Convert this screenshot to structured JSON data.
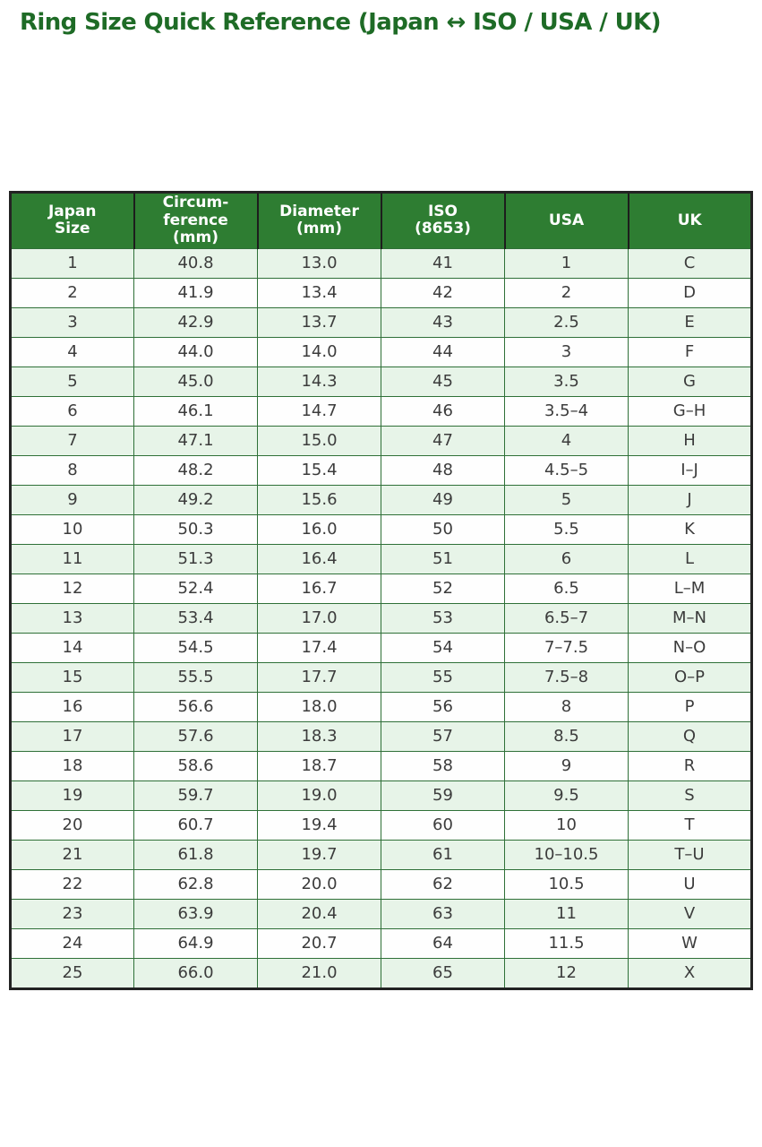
{
  "chart_data": {
    "type": "table",
    "title": "Ring Size Quick Reference (Japan ↔ ISO / USA / UK)",
    "column_keys": [
      "japan-size",
      "circumference-mm",
      "diameter-mm",
      "iso-8653",
      "usa",
      "uk"
    ],
    "columns": [
      {
        "label": "Japan Size",
        "lines": [
          "Japan",
          "Size"
        ]
      },
      {
        "label": "Circum-ference (mm)",
        "lines": [
          "Circum-",
          "ference",
          "(mm)"
        ]
      },
      {
        "label": "Diameter (mm)",
        "lines": [
          "Diameter",
          "(mm)"
        ]
      },
      {
        "label": "ISO (8653)",
        "lines": [
          "ISO",
          "(8653)"
        ]
      },
      {
        "label": "USA",
        "lines": [
          "USA"
        ]
      },
      {
        "label": "UK",
        "lines": [
          "UK"
        ]
      }
    ],
    "rows": [
      [
        "1",
        "40.8",
        "13.0",
        "41",
        "1",
        "C"
      ],
      [
        "2",
        "41.9",
        "13.4",
        "42",
        "2",
        "D"
      ],
      [
        "3",
        "42.9",
        "13.7",
        "43",
        "2.5",
        "E"
      ],
      [
        "4",
        "44.0",
        "14.0",
        "44",
        "3",
        "F"
      ],
      [
        "5",
        "45.0",
        "14.3",
        "45",
        "3.5",
        "G"
      ],
      [
        "6",
        "46.1",
        "14.7",
        "46",
        "3.5–4",
        "G–H"
      ],
      [
        "7",
        "47.1",
        "15.0",
        "47",
        "4",
        "H"
      ],
      [
        "8",
        "48.2",
        "15.4",
        "48",
        "4.5–5",
        "I–J"
      ],
      [
        "9",
        "49.2",
        "15.6",
        "49",
        "5",
        "J"
      ],
      [
        "10",
        "50.3",
        "16.0",
        "50",
        "5.5",
        "K"
      ],
      [
        "11",
        "51.3",
        "16.4",
        "51",
        "6",
        "L"
      ],
      [
        "12",
        "52.4",
        "16.7",
        "52",
        "6.5",
        "L–M"
      ],
      [
        "13",
        "53.4",
        "17.0",
        "53",
        "6.5–7",
        "M–N"
      ],
      [
        "14",
        "54.5",
        "17.4",
        "54",
        "7–7.5",
        "N–O"
      ],
      [
        "15",
        "55.5",
        "17.7",
        "55",
        "7.5–8",
        "O–P"
      ],
      [
        "16",
        "56.6",
        "18.0",
        "56",
        "8",
        "P"
      ],
      [
        "17",
        "57.6",
        "18.3",
        "57",
        "8.5",
        "Q"
      ],
      [
        "18",
        "58.6",
        "18.7",
        "58",
        "9",
        "R"
      ],
      [
        "19",
        "59.7",
        "19.0",
        "59",
        "9.5",
        "S"
      ],
      [
        "20",
        "60.7",
        "19.4",
        "60",
        "10",
        "T"
      ],
      [
        "21",
        "61.8",
        "19.7",
        "61",
        "10–10.5",
        "T–U"
      ],
      [
        "22",
        "62.8",
        "20.0",
        "62",
        "10.5",
        "U"
      ],
      [
        "23",
        "63.9",
        "20.4",
        "63",
        "11",
        "V"
      ],
      [
        "24",
        "64.9",
        "20.7",
        "64",
        "11.5",
        "W"
      ],
      [
        "25",
        "66.0",
        "21.0",
        "65",
        "12",
        "X"
      ]
    ]
  },
  "colors": {
    "title_text": "#1e6b26",
    "header_bg": "#2e7d32",
    "header_text": "#ffffff",
    "header_divider": "#1d1d1d",
    "row_alt_bg": "#e7f4e8",
    "row_bg": "#fefefe",
    "inner_border": "#2f7038",
    "outer_border": "#232323",
    "cell_text": "#3c3c3c"
  }
}
